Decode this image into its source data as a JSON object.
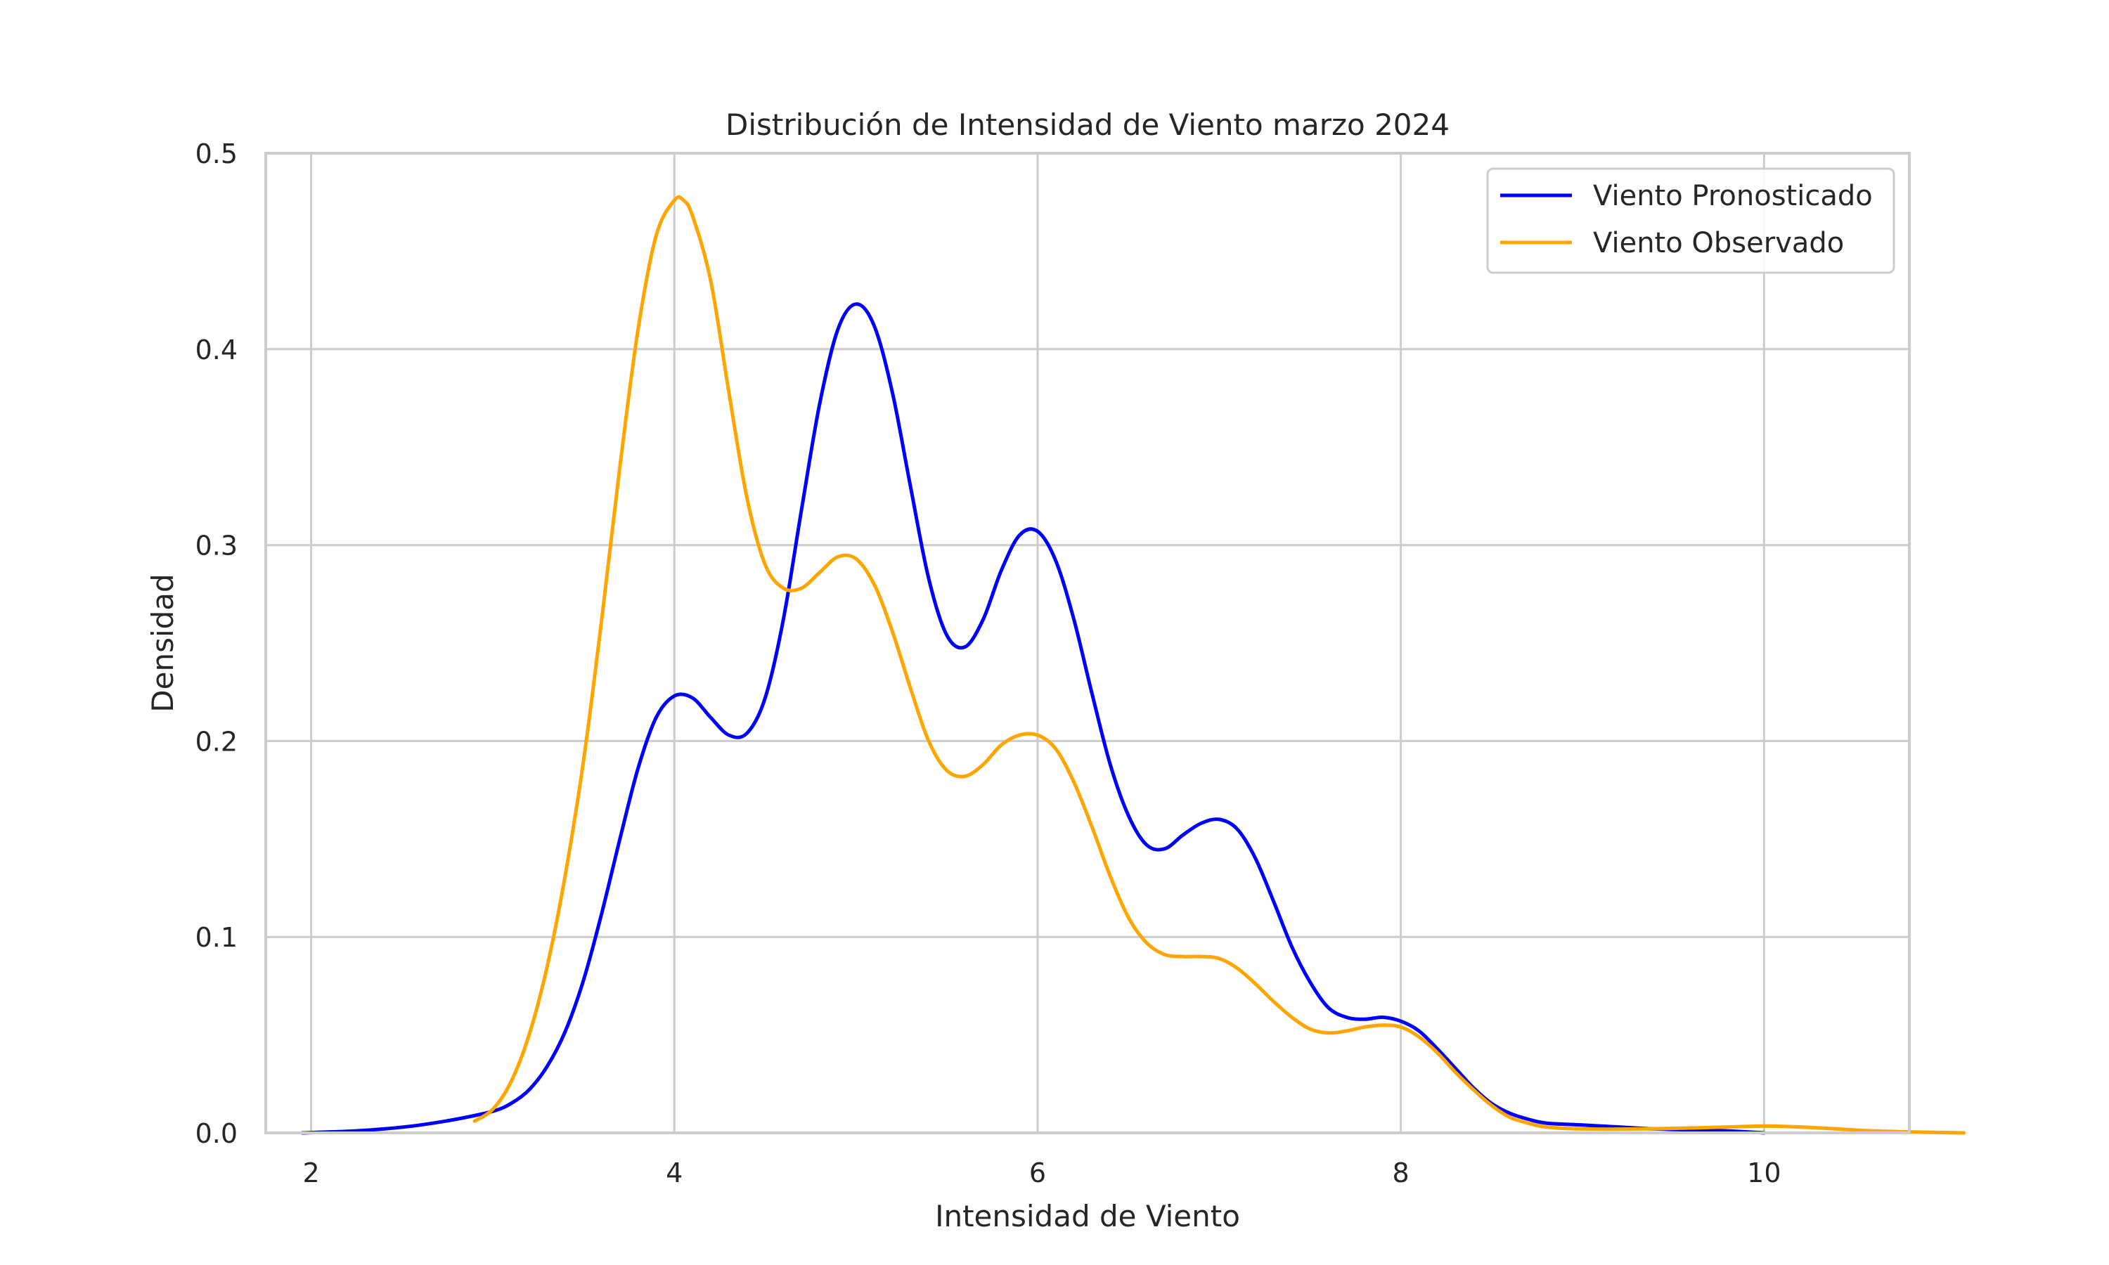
{
  "chart_data": {
    "type": "line",
    "title": "Distribución de Intensidad de Viento marzo 2024",
    "xlabel": "Intensidad de Viento",
    "ylabel": "Densidad",
    "xlim": [
      1.75,
      10.8
    ],
    "ylim": [
      0,
      0.5
    ],
    "xticks": [
      2,
      4,
      6,
      8,
      10
    ],
    "yticks": [
      0.0,
      0.1,
      0.2,
      0.3,
      0.4,
      0.5
    ],
    "xtick_labels": [
      "2",
      "4",
      "6",
      "8",
      "10"
    ],
    "ytick_labels": [
      "0.0",
      "0.1",
      "0.2",
      "0.3",
      "0.4",
      "0.5"
    ],
    "grid": true,
    "legend_position": "top-right",
    "series": [
      {
        "name": "Viento Pronosticado",
        "color": "#0000ff",
        "points": [
          [
            1.95,
            0.0
          ],
          [
            2.2,
            0.0008
          ],
          [
            2.4,
            0.002
          ],
          [
            2.6,
            0.004
          ],
          [
            2.8,
            0.007
          ],
          [
            3.0,
            0.011
          ],
          [
            3.1,
            0.015
          ],
          [
            3.2,
            0.022
          ],
          [
            3.3,
            0.034
          ],
          [
            3.4,
            0.052
          ],
          [
            3.5,
            0.078
          ],
          [
            3.6,
            0.112
          ],
          [
            3.7,
            0.15
          ],
          [
            3.8,
            0.186
          ],
          [
            3.9,
            0.212
          ],
          [
            4.0,
            0.223
          ],
          [
            4.1,
            0.222
          ],
          [
            4.2,
            0.212
          ],
          [
            4.3,
            0.203
          ],
          [
            4.4,
            0.204
          ],
          [
            4.5,
            0.222
          ],
          [
            4.6,
            0.262
          ],
          [
            4.7,
            0.318
          ],
          [
            4.8,
            0.372
          ],
          [
            4.9,
            0.41
          ],
          [
            5.0,
            0.423
          ],
          [
            5.1,
            0.412
          ],
          [
            5.2,
            0.378
          ],
          [
            5.3,
            0.33
          ],
          [
            5.4,
            0.283
          ],
          [
            5.5,
            0.254
          ],
          [
            5.6,
            0.248
          ],
          [
            5.7,
            0.262
          ],
          [
            5.8,
            0.287
          ],
          [
            5.9,
            0.305
          ],
          [
            6.0,
            0.307
          ],
          [
            6.1,
            0.292
          ],
          [
            6.2,
            0.262
          ],
          [
            6.3,
            0.224
          ],
          [
            6.4,
            0.188
          ],
          [
            6.5,
            0.162
          ],
          [
            6.6,
            0.147
          ],
          [
            6.7,
            0.145
          ],
          [
            6.8,
            0.152
          ],
          [
            6.9,
            0.158
          ],
          [
            7.0,
            0.16
          ],
          [
            7.1,
            0.155
          ],
          [
            7.2,
            0.14
          ],
          [
            7.3,
            0.118
          ],
          [
            7.4,
            0.095
          ],
          [
            7.5,
            0.077
          ],
          [
            7.6,
            0.064
          ],
          [
            7.7,
            0.059
          ],
          [
            7.8,
            0.058
          ],
          [
            7.9,
            0.059
          ],
          [
            8.0,
            0.057
          ],
          [
            8.1,
            0.052
          ],
          [
            8.2,
            0.043
          ],
          [
            8.3,
            0.033
          ],
          [
            8.4,
            0.023
          ],
          [
            8.5,
            0.015
          ],
          [
            8.6,
            0.01
          ],
          [
            8.7,
            0.007
          ],
          [
            8.8,
            0.005
          ],
          [
            9.0,
            0.004
          ],
          [
            9.2,
            0.003
          ],
          [
            9.4,
            0.002
          ],
          [
            9.6,
            0.0015
          ],
          [
            9.8,
            0.001
          ],
          [
            10.0,
            0.0
          ]
        ]
      },
      {
        "name": "Viento Observado",
        "color": "#ffa500",
        "points": [
          [
            2.9,
            0.006
          ],
          [
            3.0,
            0.012
          ],
          [
            3.1,
            0.026
          ],
          [
            3.2,
            0.05
          ],
          [
            3.3,
            0.085
          ],
          [
            3.4,
            0.132
          ],
          [
            3.5,
            0.19
          ],
          [
            3.6,
            0.262
          ],
          [
            3.7,
            0.34
          ],
          [
            3.8,
            0.41
          ],
          [
            3.9,
            0.458
          ],
          [
            4.0,
            0.476
          ],
          [
            4.05,
            0.476
          ],
          [
            4.1,
            0.468
          ],
          [
            4.2,
            0.435
          ],
          [
            4.3,
            0.378
          ],
          [
            4.4,
            0.324
          ],
          [
            4.5,
            0.29
          ],
          [
            4.6,
            0.278
          ],
          [
            4.7,
            0.278
          ],
          [
            4.8,
            0.286
          ],
          [
            4.9,
            0.294
          ],
          [
            5.0,
            0.293
          ],
          [
            5.1,
            0.28
          ],
          [
            5.2,
            0.256
          ],
          [
            5.3,
            0.227
          ],
          [
            5.4,
            0.2
          ],
          [
            5.5,
            0.185
          ],
          [
            5.6,
            0.182
          ],
          [
            5.7,
            0.188
          ],
          [
            5.8,
            0.198
          ],
          [
            5.9,
            0.203
          ],
          [
            6.0,
            0.203
          ],
          [
            6.1,
            0.196
          ],
          [
            6.2,
            0.179
          ],
          [
            6.3,
            0.156
          ],
          [
            6.4,
            0.131
          ],
          [
            6.5,
            0.11
          ],
          [
            6.6,
            0.097
          ],
          [
            6.7,
            0.091
          ],
          [
            6.8,
            0.09
          ],
          [
            6.9,
            0.09
          ],
          [
            7.0,
            0.089
          ],
          [
            7.1,
            0.084
          ],
          [
            7.2,
            0.076
          ],
          [
            7.3,
            0.067
          ],
          [
            7.4,
            0.059
          ],
          [
            7.5,
            0.053
          ],
          [
            7.6,
            0.051
          ],
          [
            7.7,
            0.052
          ],
          [
            7.8,
            0.054
          ],
          [
            7.9,
            0.055
          ],
          [
            8.0,
            0.054
          ],
          [
            8.1,
            0.049
          ],
          [
            8.2,
            0.041
          ],
          [
            8.3,
            0.031
          ],
          [
            8.4,
            0.022
          ],
          [
            8.5,
            0.014
          ],
          [
            8.6,
            0.008
          ],
          [
            8.7,
            0.005
          ],
          [
            8.8,
            0.003
          ],
          [
            9.0,
            0.002
          ],
          [
            9.3,
            0.002
          ],
          [
            9.6,
            0.0025
          ],
          [
            9.8,
            0.003
          ],
          [
            10.0,
            0.0035
          ],
          [
            10.2,
            0.003
          ],
          [
            10.4,
            0.002
          ],
          [
            10.6,
            0.001
          ],
          [
            10.8,
            0.0005
          ],
          [
            11.1,
            0.0
          ]
        ]
      }
    ]
  }
}
